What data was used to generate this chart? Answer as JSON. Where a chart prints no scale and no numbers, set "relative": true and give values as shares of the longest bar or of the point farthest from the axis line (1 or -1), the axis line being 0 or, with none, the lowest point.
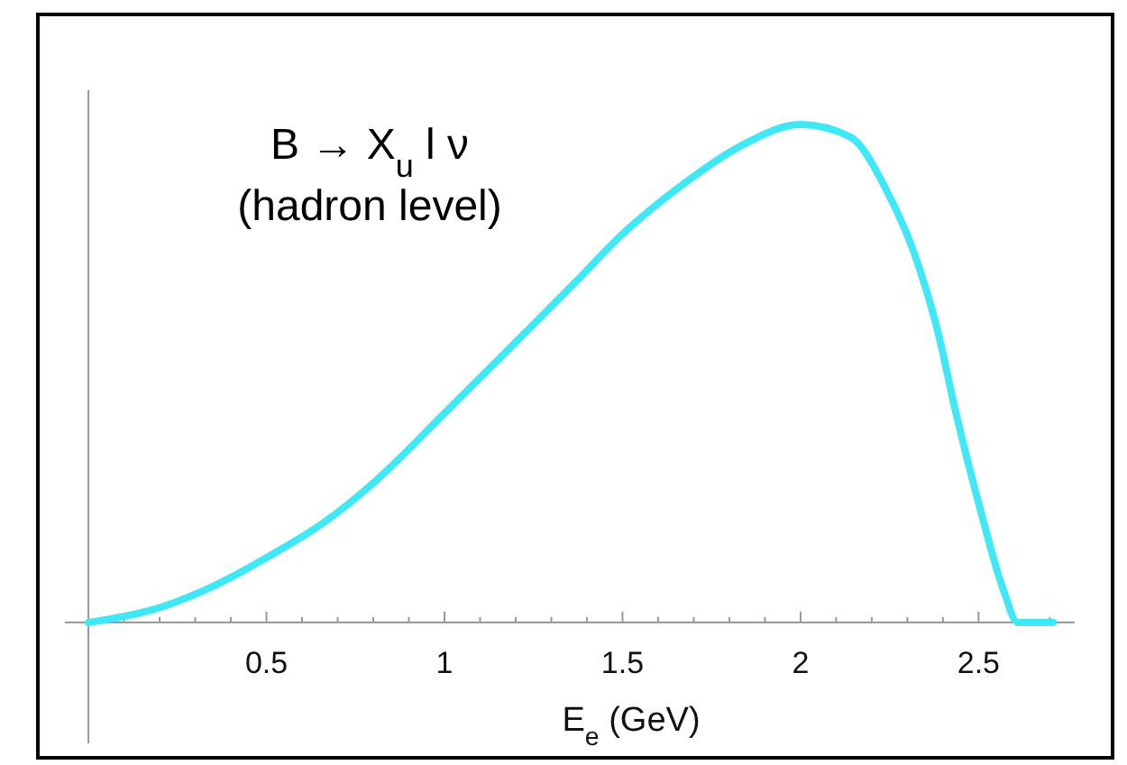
{
  "chart_data": {
    "type": "line",
    "relative": true,
    "xlabel": "E$_{e}$ (GeV)",
    "annotations": [
      "B → X$_{u}$ l ν",
      "(hadron level)"
    ],
    "xlim": [
      -0.066,
      2.77
    ],
    "xticks": [
      {
        "value": 0.1,
        "label": null
      },
      {
        "value": 0.2,
        "label": null
      },
      {
        "value": 0.3,
        "label": null
      },
      {
        "value": 0.4,
        "label": null
      },
      {
        "value": 0.5,
        "label": "0.5"
      },
      {
        "value": 0.6,
        "label": null
      },
      {
        "value": 0.7,
        "label": null
      },
      {
        "value": 0.8,
        "label": null
      },
      {
        "value": 0.9,
        "label": null
      },
      1,
      {
        "value": 1.1,
        "label": null
      },
      {
        "value": 1.2,
        "label": null
      },
      {
        "value": 1.3,
        "label": null
      },
      {
        "value": 1.4,
        "label": null
      },
      {
        "value": 1.5,
        "label": "1.5"
      },
      {
        "value": 1.6,
        "label": null
      },
      {
        "value": 1.7,
        "label": null
      },
      {
        "value": 1.8,
        "label": null
      },
      {
        "value": 1.9,
        "label": null
      },
      2,
      {
        "value": 2.1,
        "label": null
      },
      {
        "value": 2.2,
        "label": null
      },
      {
        "value": 2.3,
        "label": null
      },
      {
        "value": 2.4,
        "label": null
      },
      {
        "value": 2.5,
        "label": "2.5"
      },
      {
        "value": 2.6,
        "label": null
      },
      {
        "value": 2.7,
        "label": null
      }
    ],
    "x": [
      0,
      0.2,
      0.36,
      0.5,
      0.66,
      0.8,
      1,
      1.21,
      1.37,
      1.5,
      1.67,
      1.84,
      2,
      2.14,
      2.24,
      2.32,
      2.38,
      2.44,
      2.5,
      2.57,
      2.61,
      2.71
    ],
    "series": [
      {
        "color": "#3ee8f6",
        "values": [
          0,
          0.03,
          0.076,
          0.13,
          0.2,
          0.28,
          0.42,
          0.57,
          0.685,
          0.78,
          0.88,
          0.96,
          1,
          0.975,
          0.87,
          0.74,
          0.6,
          0.41,
          0.24,
          0.065,
          0,
          0
        ]
      }
    ]
  }
}
